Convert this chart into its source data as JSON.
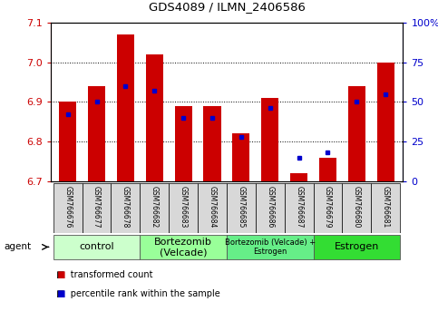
{
  "title": "GDS4089 / ILMN_2406586",
  "samples": [
    "GSM766676",
    "GSM766677",
    "GSM766678",
    "GSM766682",
    "GSM766683",
    "GSM766684",
    "GSM766685",
    "GSM766686",
    "GSM766687",
    "GSM766679",
    "GSM766680",
    "GSM766681"
  ],
  "red_values": [
    6.9,
    6.94,
    7.07,
    7.02,
    6.89,
    6.89,
    6.82,
    6.91,
    6.72,
    6.76,
    6.94,
    7.0
  ],
  "blue_values": [
    42,
    50,
    60,
    57,
    40,
    40,
    28,
    46,
    15,
    18,
    50,
    55
  ],
  "ylim_left": [
    6.7,
    7.1
  ],
  "ylim_right": [
    0,
    100
  ],
  "yticks_left": [
    6.7,
    6.8,
    6.9,
    7.0,
    7.1
  ],
  "yticks_right": [
    0,
    25,
    50,
    75,
    100
  ],
  "ytick_labels_right": [
    "0",
    "25",
    "50",
    "75",
    "100%"
  ],
  "bar_base": 6.7,
  "bar_width": 0.6,
  "red_color": "#cc0000",
  "blue_color": "#0000cc",
  "tick_label_color": "#cc0000",
  "right_tick_color": "#0000cc",
  "agent_label": "agent",
  "legend1": "transformed count",
  "legend2": "percentile rank within the sample",
  "group_data": [
    {
      "label": "control",
      "cols": [
        0,
        1,
        2
      ],
      "color": "#ccffcc",
      "fontsize": 8
    },
    {
      "label": "Bortezomib\n(Velcade)",
      "cols": [
        3,
        4,
        5
      ],
      "color": "#99ff99",
      "fontsize": 8
    },
    {
      "label": "Bortezomib (Velcade) +\nEstrogen",
      "cols": [
        6,
        7,
        8
      ],
      "color": "#66ee88",
      "fontsize": 6
    },
    {
      "label": "Estrogen",
      "cols": [
        9,
        10,
        11
      ],
      "color": "#33dd33",
      "fontsize": 8
    }
  ]
}
